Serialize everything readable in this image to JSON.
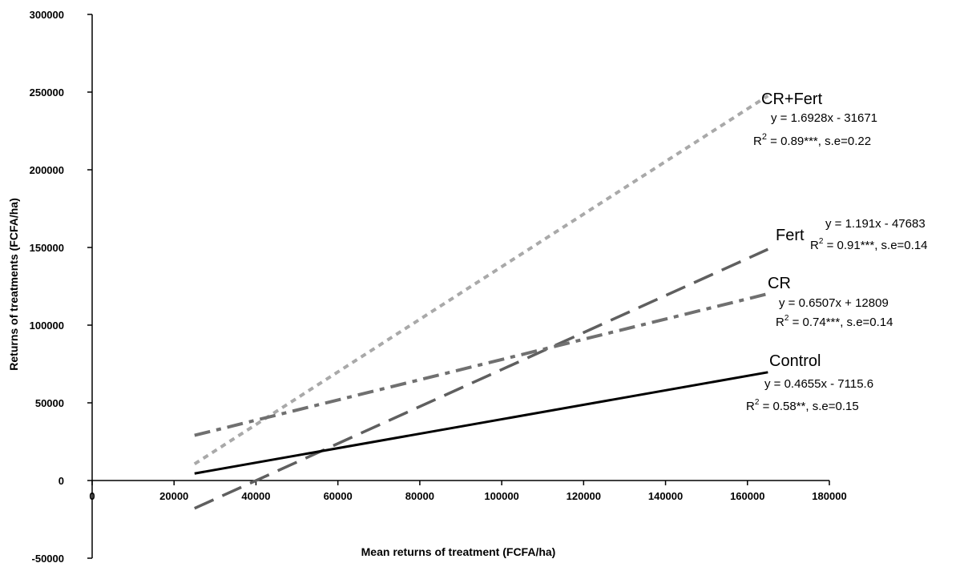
{
  "chart_data": {
    "type": "line",
    "title": "",
    "xlabel": "Mean returns of treatment (FCFA/ha)",
    "ylabel": "Returns of treatments (FCFA/ha)",
    "xlim": [
      0,
      180000
    ],
    "ylim": [
      -50000,
      300000
    ],
    "x_ticks": [
      "0",
      "20000",
      "40000",
      "60000",
      "80000",
      "100000",
      "120000",
      "140000",
      "160000",
      "180000"
    ],
    "y_ticks": [
      "-50000",
      "0",
      "50000",
      "100000",
      "150000",
      "200000",
      "250000",
      "300000"
    ],
    "grid": false,
    "series": [
      {
        "name": "CR+Fert",
        "equation": "y = 1.6928x - 31671",
        "r2": "0.89***",
        "se": "s.e=0.22",
        "color": "#a9a9a9",
        "dash": "dotted",
        "x": [
          25000,
          165000
        ],
        "y": [
          10649,
          247641
        ]
      },
      {
        "name": "Fert",
        "equation": "y = 1.191x - 47683",
        "r2": "0.91***",
        "se": "s.e=0.14",
        "color": "#5f5f5f",
        "dash": "long-dash",
        "x": [
          25000,
          165000
        ],
        "y": [
          -17908,
          148832
        ]
      },
      {
        "name": "CR",
        "equation": "y = 0.6507x + 12809",
        "r2": "0.74***",
        "se": "s.e=0.14",
        "color": "#707070",
        "dash": "dash-dot",
        "x": [
          25000,
          165000
        ],
        "y": [
          29077,
          120175
        ]
      },
      {
        "name": "Control",
        "equation": "y = 0.4655x - 7115.6",
        "r2": "0.58**",
        "se": "s.e=0.15",
        "color": "#000000",
        "dash": "solid",
        "x": [
          25000,
          165000
        ],
        "y": [
          4522,
          69692
        ]
      }
    ]
  }
}
